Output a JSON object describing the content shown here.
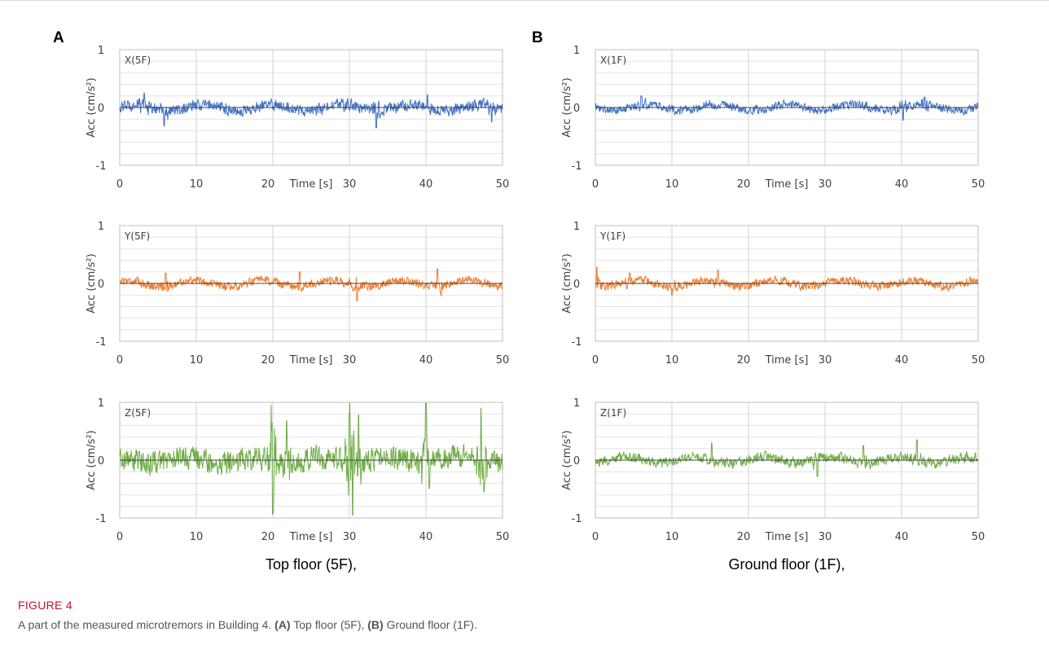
{
  "panels": [
    {
      "label": "A",
      "title": "Top floor (5F),"
    },
    {
      "label": "B",
      "title": "Ground floor (1F),"
    }
  ],
  "caption": {
    "figure_label": "FIGURE 4",
    "text_before": "A part of the measured microtremors in Building 4. ",
    "a_tag": "(A)",
    "a_text": " Top floor (5F), ",
    "b_tag": "(B)",
    "b_text": " Ground floor (1F)."
  },
  "colors": {
    "X": "#4472c4",
    "Y": "#ed7d31",
    "Z": "#70ad47"
  },
  "chart_data": [
    {
      "type": "line",
      "panel": "A",
      "series_label": "X(5F)",
      "component": "X",
      "xlabel": "Time [s]",
      "ylabel": "Acc (cm/s²)",
      "xlim": [
        0,
        50
      ],
      "ylim": [
        -1,
        1
      ],
      "xticks": [
        0,
        10,
        20,
        30,
        40,
        50
      ],
      "yticks": [
        -1,
        0,
        1
      ],
      "amplitude": 0.15,
      "peaks": [
        [
          3.2,
          0.25
        ],
        [
          5.8,
          -0.32
        ],
        [
          33.5,
          -0.35
        ],
        [
          40.2,
          0.22
        ],
        [
          48.6,
          -0.25
        ]
      ],
      "grid": true
    },
    {
      "type": "line",
      "panel": "A",
      "series_label": "Y(5F)",
      "component": "Y",
      "xlabel": "Time [s]",
      "ylabel": "Acc (cm/s²)",
      "xlim": [
        0,
        50
      ],
      "ylim": [
        -1,
        1
      ],
      "xticks": [
        0,
        10,
        20,
        30,
        40,
        50
      ],
      "yticks": [
        -1,
        0,
        1
      ],
      "amplitude": 0.11,
      "peaks": [
        [
          31.0,
          -0.3
        ],
        [
          41.5,
          0.25
        ],
        [
          6.0,
          0.18
        ],
        [
          23.5,
          0.2
        ]
      ],
      "grid": true
    },
    {
      "type": "line",
      "panel": "A",
      "series_label": "Z(5F)",
      "component": "Z",
      "xlabel": "Time [s]",
      "ylabel": "Acc (cm/s²)",
      "xlim": [
        0,
        50
      ],
      "ylim": [
        -1,
        1
      ],
      "xticks": [
        0,
        10,
        20,
        30,
        40,
        50
      ],
      "yticks": [
        -1,
        0,
        1
      ],
      "amplitude": 0.3,
      "peaks": [
        [
          19.8,
          0.72
        ],
        [
          20.0,
          -0.93
        ],
        [
          21.8,
          0.68
        ],
        [
          30.0,
          0.98
        ],
        [
          30.4,
          -0.95
        ],
        [
          31.2,
          0.78
        ],
        [
          40.0,
          0.98
        ],
        [
          47.2,
          0.92
        ],
        [
          47.6,
          -0.55
        ]
      ],
      "grid": true
    },
    {
      "type": "line",
      "panel": "B",
      "series_label": "X(1F)",
      "component": "X",
      "xlabel": "Time [s]",
      "ylabel": "Acc (cm/s²)",
      "xlim": [
        0,
        50
      ],
      "ylim": [
        -1,
        1
      ],
      "xticks": [
        0,
        10,
        20,
        30,
        40,
        50
      ],
      "yticks": [
        -1,
        0,
        1
      ],
      "amplitude": 0.11,
      "peaks": [
        [
          6.0,
          0.2
        ],
        [
          40.2,
          -0.22
        ],
        [
          43.0,
          0.18
        ]
      ],
      "grid": true
    },
    {
      "type": "line",
      "panel": "B",
      "series_label": "Y(1F)",
      "component": "Y",
      "xlabel": "Time [s]",
      "ylabel": "Acc (cm/s²)",
      "xlim": [
        0,
        50
      ],
      "ylim": [
        -1,
        1
      ],
      "xticks": [
        0,
        10,
        20,
        30,
        40,
        50
      ],
      "yticks": [
        -1,
        0,
        1
      ],
      "amplitude": 0.11,
      "peaks": [
        [
          0.2,
          0.28
        ],
        [
          16.0,
          0.23
        ],
        [
          4.5,
          0.18
        ],
        [
          10.0,
          -0.2
        ]
      ],
      "grid": true
    },
    {
      "type": "line",
      "panel": "B",
      "series_label": "Z(1F)",
      "component": "Z",
      "xlabel": "Time [s]",
      "ylabel": "Acc (cm/s²)",
      "xlim": [
        0,
        50
      ],
      "ylim": [
        -1,
        1
      ],
      "xticks": [
        0,
        10,
        20,
        30,
        40,
        50
      ],
      "yticks": [
        -1,
        0,
        1
      ],
      "amplitude": 0.13,
      "peaks": [
        [
          15.2,
          0.3
        ],
        [
          42.0,
          0.35
        ],
        [
          29.0,
          -0.28
        ],
        [
          35.0,
          0.25
        ]
      ],
      "grid": true
    }
  ]
}
